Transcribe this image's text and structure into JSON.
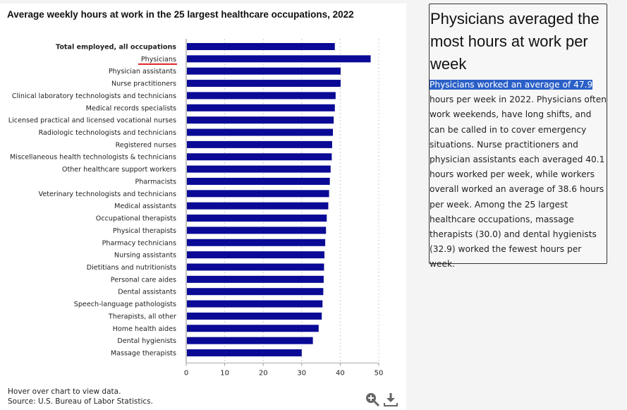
{
  "chart_data": {
    "type": "bar",
    "orientation": "horizontal",
    "title": "Average weekly hours at work in the 25 largest healthcare occupations, 2022",
    "categories": [
      "Total employed, all occupations",
      "Physicians",
      "Physician assistants",
      "Nurse practitioners",
      "Clinical laboratory technologists and technicians",
      "Medical records specialists",
      "Licensed practical and licensed vocational nurses",
      "Radiologic technologists and technicians",
      "Registered nurses",
      "Miscellaneous health technologists & technicians",
      "Other healthcare support workers",
      "Pharmacists",
      "Veterinary technologists and technicians",
      "Medical assistants",
      "Occupational therapists",
      "Physical therapists",
      "Pharmacy technicians",
      "Nursing assistants",
      "Dietitians and nutritionists",
      "Personal care aides",
      "Dental assistants",
      "Speech-language pathologists",
      "Therapists, all other",
      "Home health aides",
      "Dental hygienists",
      "Massage therapists"
    ],
    "values": [
      38.6,
      47.9,
      40.1,
      40.1,
      38.8,
      38.6,
      38.3,
      38.1,
      37.9,
      37.8,
      37.5,
      37.3,
      37.1,
      36.9,
      36.5,
      36.3,
      36.1,
      35.9,
      35.8,
      35.7,
      35.6,
      35.4,
      35.2,
      34.4,
      32.9,
      30.0
    ],
    "highlight_color": "#e02020",
    "bar_color": "#0a0a96",
    "xlim": [
      0,
      50
    ],
    "xticks": [
      "0",
      "10",
      "20",
      "30",
      "40",
      "50"
    ],
    "grid": true
  },
  "footer": {
    "hover_note": "Hover over chart to view data.",
    "source": "Source: U.S. Bureau of Labor Statistics."
  },
  "icons": {
    "zoom": "zoom-in-icon",
    "download": "download-icon"
  },
  "side": {
    "heading": "Physicians averaged the most hours at work per week",
    "highlighted": "Physicians worked an average of 47.9",
    "body": " hours per week in 2022. Physicians often work weekends, have long shifts, and can be called in to cover emergency situations. Nurse practitioners and physician assistants each averaged 40.1 hours worked per week, while workers overall worked an average of 38.6 hours per week. Among the 25 largest healthcare occupations, massage therapists (30.0) and dental hygienists (32.9) worked the fewest hours per week."
  }
}
